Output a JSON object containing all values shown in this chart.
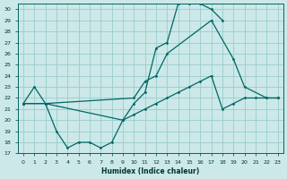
{
  "xlabel": "Humidex (Indice chaleur)",
  "bg_color": "#cce8e8",
  "grid_color": "#99cccc",
  "line_color": "#006666",
  "xlim": [
    -0.5,
    23.5
  ],
  "ylim": [
    17,
    30.5
  ],
  "yticks": [
    17,
    18,
    19,
    20,
    21,
    22,
    23,
    24,
    25,
    26,
    27,
    28,
    29,
    30
  ],
  "xticks": [
    0,
    1,
    2,
    3,
    4,
    5,
    6,
    7,
    8,
    9,
    10,
    11,
    12,
    13,
    14,
    15,
    16,
    17,
    18,
    19,
    20,
    21,
    22,
    23
  ],
  "line1_x": [
    0,
    1,
    2,
    3,
    4,
    5,
    6,
    7,
    8,
    9,
    10,
    11,
    12,
    13,
    14,
    15,
    16,
    17,
    18
  ],
  "line1_y": [
    21.5,
    23.0,
    21.5,
    19.0,
    17.5,
    18.0,
    18.0,
    17.5,
    18.0,
    20.0,
    21.5,
    22.5,
    26.5,
    27.0,
    30.5,
    30.5,
    30.5,
    30.0,
    29.0
  ],
  "line2_x": [
    0,
    2,
    10,
    11,
    12,
    13,
    17,
    19,
    20,
    22,
    23
  ],
  "line2_y": [
    21.5,
    21.5,
    22.0,
    23.5,
    24.0,
    26.0,
    29.0,
    25.5,
    23.0,
    22.0,
    22.0
  ],
  "line3_x": [
    0,
    2,
    9,
    10,
    11,
    12,
    13,
    14,
    15,
    16,
    17,
    18,
    19,
    20,
    21,
    22,
    23
  ],
  "line3_y": [
    21.5,
    21.5,
    20.0,
    20.5,
    21.0,
    21.5,
    22.0,
    22.5,
    23.0,
    23.5,
    24.0,
    21.0,
    21.5,
    22.0,
    22.0,
    22.0,
    22.0
  ]
}
